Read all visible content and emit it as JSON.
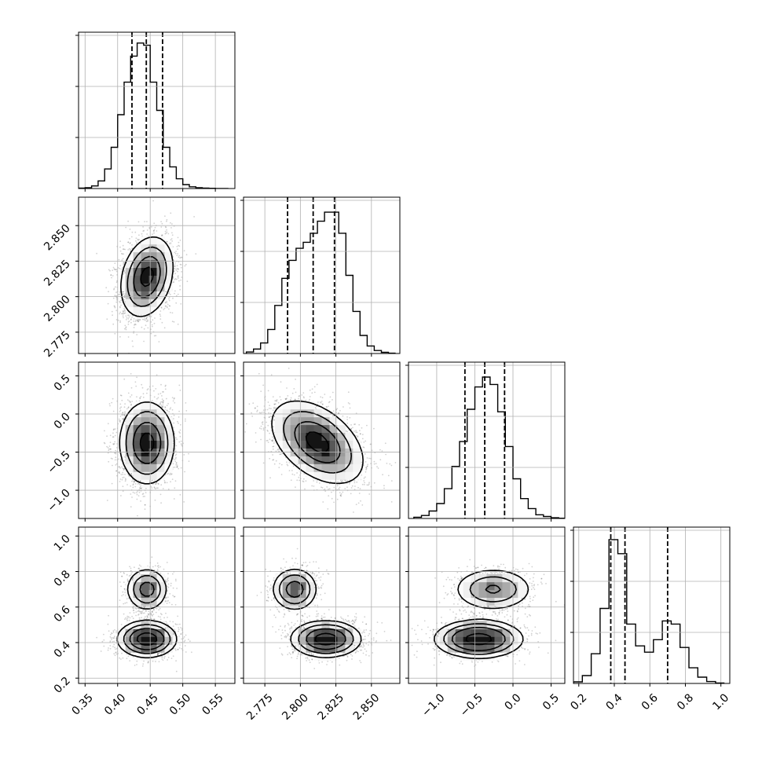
{
  "chart_data": {
    "type": "corner",
    "parameters": [
      {
        "index": 0,
        "range": [
          0.34,
          0.58
        ],
        "ticks": [
          0.35,
          0.4,
          0.45,
          0.5,
          0.55
        ],
        "tick_labels": [
          "0.35",
          "0.40",
          "0.45",
          "0.50",
          "0.55"
        ],
        "quantiles": [
          0.422,
          0.444,
          0.469
        ]
      },
      {
        "index": 1,
        "range": [
          2.76,
          2.87
        ],
        "ticks": [
          2.775,
          2.8,
          2.825,
          2.85
        ],
        "tick_labels": [
          "2.775",
          "2.800",
          "2.825",
          "2.850"
        ],
        "quantiles": [
          2.791,
          2.809,
          2.824
        ]
      },
      {
        "index": 2,
        "range": [
          -1.37,
          0.68
        ],
        "ticks": [
          -1.0,
          -0.5,
          0.0,
          0.5
        ],
        "tick_labels": [
          "−1.0",
          "−0.5",
          "0.0",
          "0.5"
        ],
        "quantiles": [
          -0.63,
          -0.37,
          -0.11
        ]
      },
      {
        "index": 3,
        "range": [
          0.17,
          1.05
        ],
        "ticks": [
          0.2,
          0.4,
          0.6,
          0.8,
          1.0
        ],
        "tick_labels": [
          "0.2",
          "0.4",
          "0.6",
          "0.8",
          "1.0"
        ],
        "quantiles": [
          0.38,
          0.46,
          0.7
        ]
      }
    ],
    "marginals": [
      {
        "param": 0,
        "bins": [
          0.34,
          0.35,
          0.36,
          0.37,
          0.38,
          0.39,
          0.4,
          0.41,
          0.42,
          0.43,
          0.44,
          0.45,
          0.46,
          0.47,
          0.48,
          0.49,
          0.5,
          0.51,
          0.52,
          0.53,
          0.54,
          0.55,
          0.56
        ],
        "counts": [
          0.002,
          0.004,
          0.012,
          0.035,
          0.09,
          0.19,
          0.34,
          0.49,
          0.61,
          0.67,
          0.66,
          0.49,
          0.36,
          0.19,
          0.1,
          0.045,
          0.018,
          0.008,
          0.004,
          0.002,
          0.001,
          0,
          0
        ],
        "ylim": [
          0,
          0.72
        ]
      },
      {
        "param": 1,
        "bins": [
          2.762,
          2.767,
          2.772,
          2.777,
          2.782,
          2.787,
          2.792,
          2.797,
          2.802,
          2.807,
          2.812,
          2.817,
          2.822,
          2.827,
          2.832,
          2.837,
          2.842,
          2.847,
          2.852,
          2.857,
          2.862
        ],
        "counts": [
          0.005,
          0.015,
          0.035,
          0.08,
          0.16,
          0.25,
          0.31,
          0.35,
          0.37,
          0.4,
          0.44,
          0.47,
          0.47,
          0.4,
          0.26,
          0.14,
          0.06,
          0.025,
          0.01,
          0.004,
          0.001
        ],
        "ylim": [
          0,
          0.52
        ]
      },
      {
        "param": 2,
        "bins": [
          -1.3,
          -1.2,
          -1.1,
          -1.0,
          -0.9,
          -0.8,
          -0.7,
          -0.6,
          -0.5,
          -0.4,
          -0.3,
          -0.2,
          -0.1,
          0.0,
          0.1,
          0.2,
          0.3,
          0.4,
          0.5,
          0.6
        ],
        "counts": [
          0.005,
          0.012,
          0.03,
          0.06,
          0.12,
          0.21,
          0.31,
          0.44,
          0.53,
          0.57,
          0.54,
          0.43,
          0.29,
          0.16,
          0.08,
          0.04,
          0.015,
          0.008,
          0.003,
          0.001
        ],
        "ylim": [
          0,
          0.63
        ]
      },
      {
        "param": 3,
        "bins": [
          0.17,
          0.22,
          0.27,
          0.32,
          0.37,
          0.42,
          0.47,
          0.52,
          0.57,
          0.62,
          0.67,
          0.72,
          0.77,
          0.82,
          0.87,
          0.92,
          0.97,
          1.02
        ],
        "counts": [
          0.01,
          0.05,
          0.19,
          0.48,
          0.92,
          0.83,
          0.38,
          0.24,
          0.2,
          0.28,
          0.4,
          0.38,
          0.23,
          0.1,
          0.04,
          0.012,
          0.003
        ],
        "ylim": [
          0,
          1.0
        ]
      }
    ],
    "joints": [
      {
        "x_param": 0,
        "y_param": 1,
        "modes": [
          {
            "mx": 0.445,
            "my": 2.814,
            "sx": 0.02,
            "sy": 0.014,
            "rho": 0.25,
            "w": 1
          }
        ]
      },
      {
        "x_param": 0,
        "y_param": 2,
        "modes": [
          {
            "mx": 0.445,
            "my": -0.38,
            "sx": 0.021,
            "sy": 0.27,
            "rho": 0.0,
            "w": 1
          }
        ]
      },
      {
        "x_param": 1,
        "y_param": 2,
        "modes": [
          {
            "mx": 2.812,
            "my": -0.37,
            "sx": 0.016,
            "sy": 0.27,
            "rho": -0.45,
            "w": 1
          }
        ]
      },
      {
        "x_param": 0,
        "y_param": 3,
        "modes": [
          {
            "mx": 0.445,
            "my": 0.7,
            "sx": 0.016,
            "sy": 0.06,
            "rho": 0.0,
            "w": 0.35
          },
          {
            "mx": 0.445,
            "my": 0.42,
            "sx": 0.022,
            "sy": 0.05,
            "rho": 0.0,
            "w": 0.65
          }
        ]
      },
      {
        "x_param": 1,
        "y_param": 3,
        "modes": [
          {
            "mx": 2.796,
            "my": 0.7,
            "sx": 0.008,
            "sy": 0.06,
            "rho": 0.0,
            "w": 0.35
          },
          {
            "mx": 2.818,
            "my": 0.42,
            "sx": 0.012,
            "sy": 0.05,
            "rho": 0.0,
            "w": 0.65
          }
        ]
      },
      {
        "x_param": 2,
        "y_param": 3,
        "modes": [
          {
            "mx": -0.26,
            "my": 0.7,
            "sx": 0.26,
            "sy": 0.06,
            "rho": 0.0,
            "w": 0.35
          },
          {
            "mx": -0.45,
            "my": 0.42,
            "sx": 0.27,
            "sy": 0.05,
            "rho": 0.0,
            "w": 0.65
          }
        ]
      }
    ],
    "contour_levels": [
      0.118,
      0.393,
      0.675,
      0.865
    ],
    "grid": true,
    "colors": {
      "contour": "#000000",
      "density_dark": "#111111",
      "background": "#ffffff",
      "grid": "#b0b0b0"
    }
  }
}
